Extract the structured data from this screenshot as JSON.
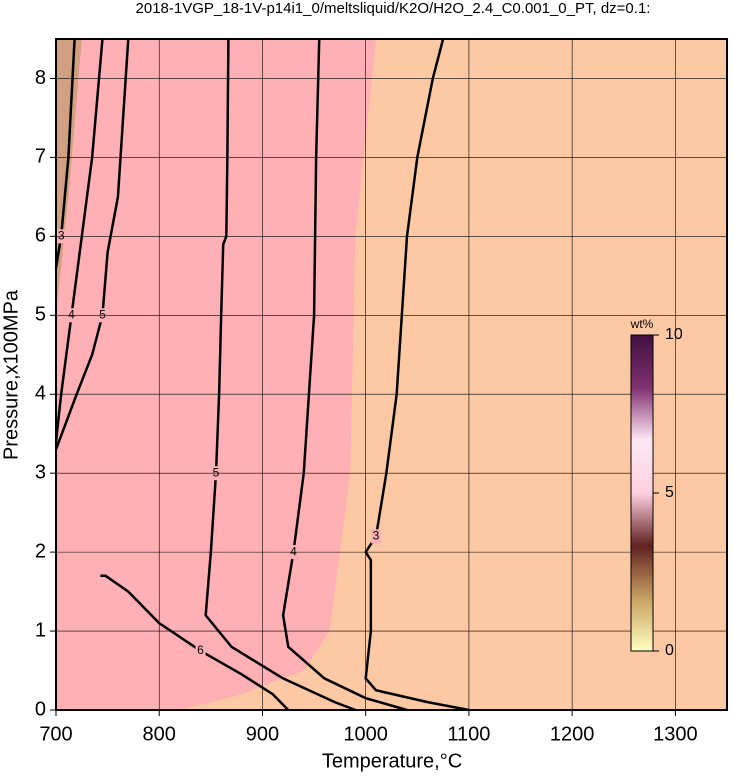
{
  "chart_data": {
    "type": "contour",
    "title": "2018-1VGP_18-1V-p14i1_0/meltsliquid/K2O/H2O_2.4_C0.001_0_PT, dz=0.1:",
    "x_label": "Temperature,°C",
    "y_label": "Pressure,x100MPa",
    "xlim": [
      700,
      1350
    ],
    "ylim": [
      0,
      8.5
    ],
    "xticks": [
      700,
      800,
      900,
      1000,
      1100,
      1200,
      1300
    ],
    "yticks": [
      0,
      1,
      2,
      3,
      4,
      5,
      6,
      7,
      8
    ],
    "grid": true,
    "colors": {
      "low": "#fdc8a4",
      "high": "#ffb0b4",
      "line": "#000000"
    },
    "contours": [
      {
        "level": 3,
        "x": [
          1075,
          1065,
          1050,
          1040,
          1035,
          1030,
          1020,
          1010,
          1000,
          1005,
          1005,
          1000,
          1010,
          1060,
          1100
        ],
        "y": [
          8.5,
          8,
          7,
          6,
          5,
          4,
          3,
          2.2,
          2.0,
          1.9,
          1,
          0.4,
          0.25,
          0.1,
          0
        ]
      },
      {
        "level": 4,
        "x": [
          955,
          952,
          950,
          945,
          940,
          930,
          920,
          925,
          960,
          1000,
          1040
        ],
        "y": [
          8.5,
          7,
          5,
          4,
          3,
          2,
          1.2,
          0.8,
          0.4,
          0.15,
          0
        ]
      },
      {
        "level": 5,
        "x": [
          867,
          866,
          865,
          862,
          860,
          858,
          855,
          850,
          845,
          870,
          920,
          970,
          990
        ],
        "y": [
          8.5,
          7,
          6,
          5.9,
          5,
          4,
          3,
          2,
          1.2,
          0.8,
          0.4,
          0.1,
          0
        ]
      },
      {
        "level": 6,
        "x": [
          743,
          748,
          770,
          800,
          840,
          880,
          910,
          925
        ],
        "y": [
          1.7,
          1.7,
          1.5,
          1.1,
          0.75,
          0.45,
          0.2,
          0
        ]
      },
      {
        "level": 3,
        "x": [
          718,
          712,
          705,
          700
        ],
        "y": [
          8.5,
          7,
          6,
          5.6
        ]
      },
      {
        "level": 4,
        "x": [
          745,
          735,
          725,
          715,
          705,
          700
        ],
        "y": [
          8.5,
          7,
          6,
          5,
          4,
          3.4
        ]
      },
      {
        "level": 5,
        "x": [
          770,
          765,
          760,
          750,
          745,
          735,
          720,
          700
        ],
        "y": [
          8.5,
          7.5,
          6.5,
          5.8,
          5,
          4.5,
          4,
          3.3
        ]
      }
    ],
    "colorbar": {
      "label": "wt%",
      "lim": [
        0,
        10
      ],
      "ticks": [
        0,
        5,
        10
      ],
      "stops": [
        "#ffffc0",
        "#c8a060",
        "#602020",
        "#ffd0e0",
        "#ffe8f4",
        "#803070",
        "#401040"
      ]
    }
  }
}
